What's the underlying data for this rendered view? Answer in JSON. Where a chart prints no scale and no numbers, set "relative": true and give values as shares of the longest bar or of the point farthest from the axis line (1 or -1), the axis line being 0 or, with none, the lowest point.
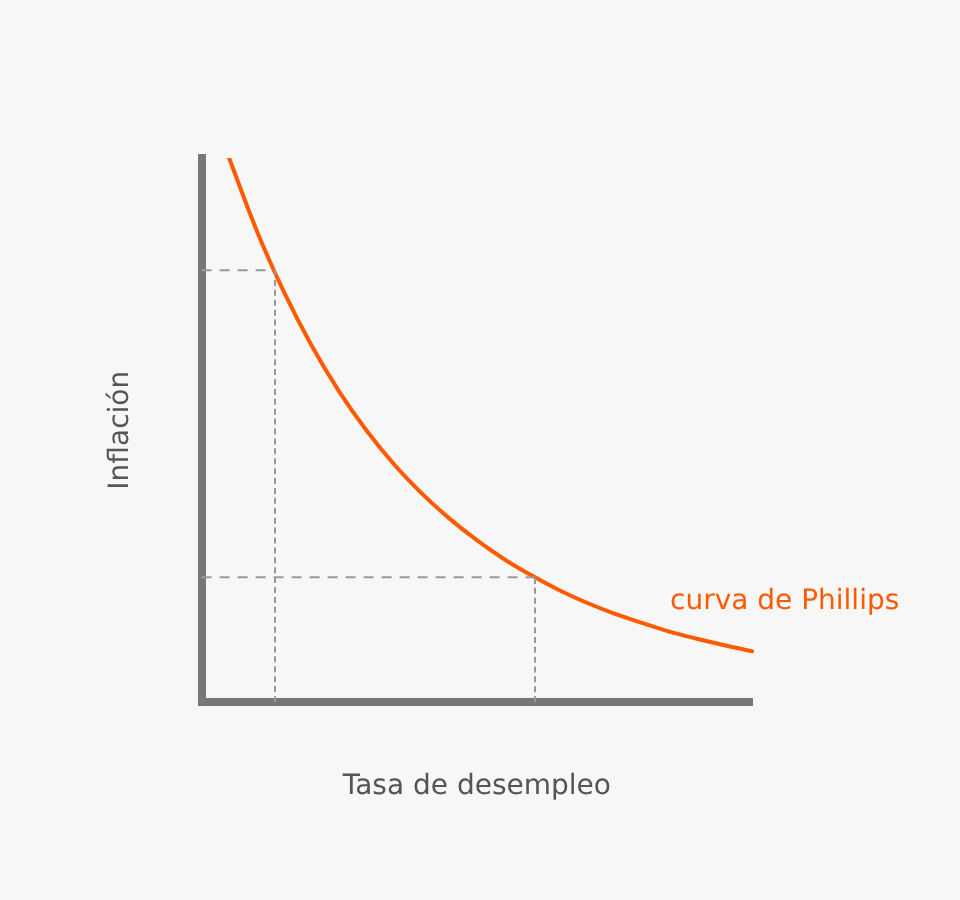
{
  "chart_data": {
    "type": "line",
    "relative": true,
    "xlabel": "Tasa de desempleo",
    "ylabel": "Inflación",
    "categories": [
      null,
      null,
      null,
      null,
      null,
      null,
      null,
      null,
      null,
      null,
      null,
      null,
      null,
      null,
      null,
      null,
      null,
      null,
      null,
      null,
      null
    ],
    "series": [
      {
        "name": "curva de Phillips",
        "color": "#ff5a00",
        "values": [
          null,
          1.0,
          0.867,
          0.753,
          0.655,
          0.571,
          0.499,
          0.437,
          0.384,
          0.338,
          0.298,
          0.263,
          0.233,
          0.206,
          0.183,
          0.163,
          0.146,
          0.13,
          0.117,
          0.105,
          0.094
        ]
      }
    ],
    "ref_lines": [
      {
        "axis": "y",
        "value": 0.794,
        "color": "#999999",
        "line_style": "dashed"
      },
      {
        "axis": "y",
        "value": 0.23,
        "color": "#999999",
        "line_style": "dashed"
      }
    ],
    "grid": false,
    "legend": false,
    "marker": "none",
    "line_style": "solid"
  }
}
